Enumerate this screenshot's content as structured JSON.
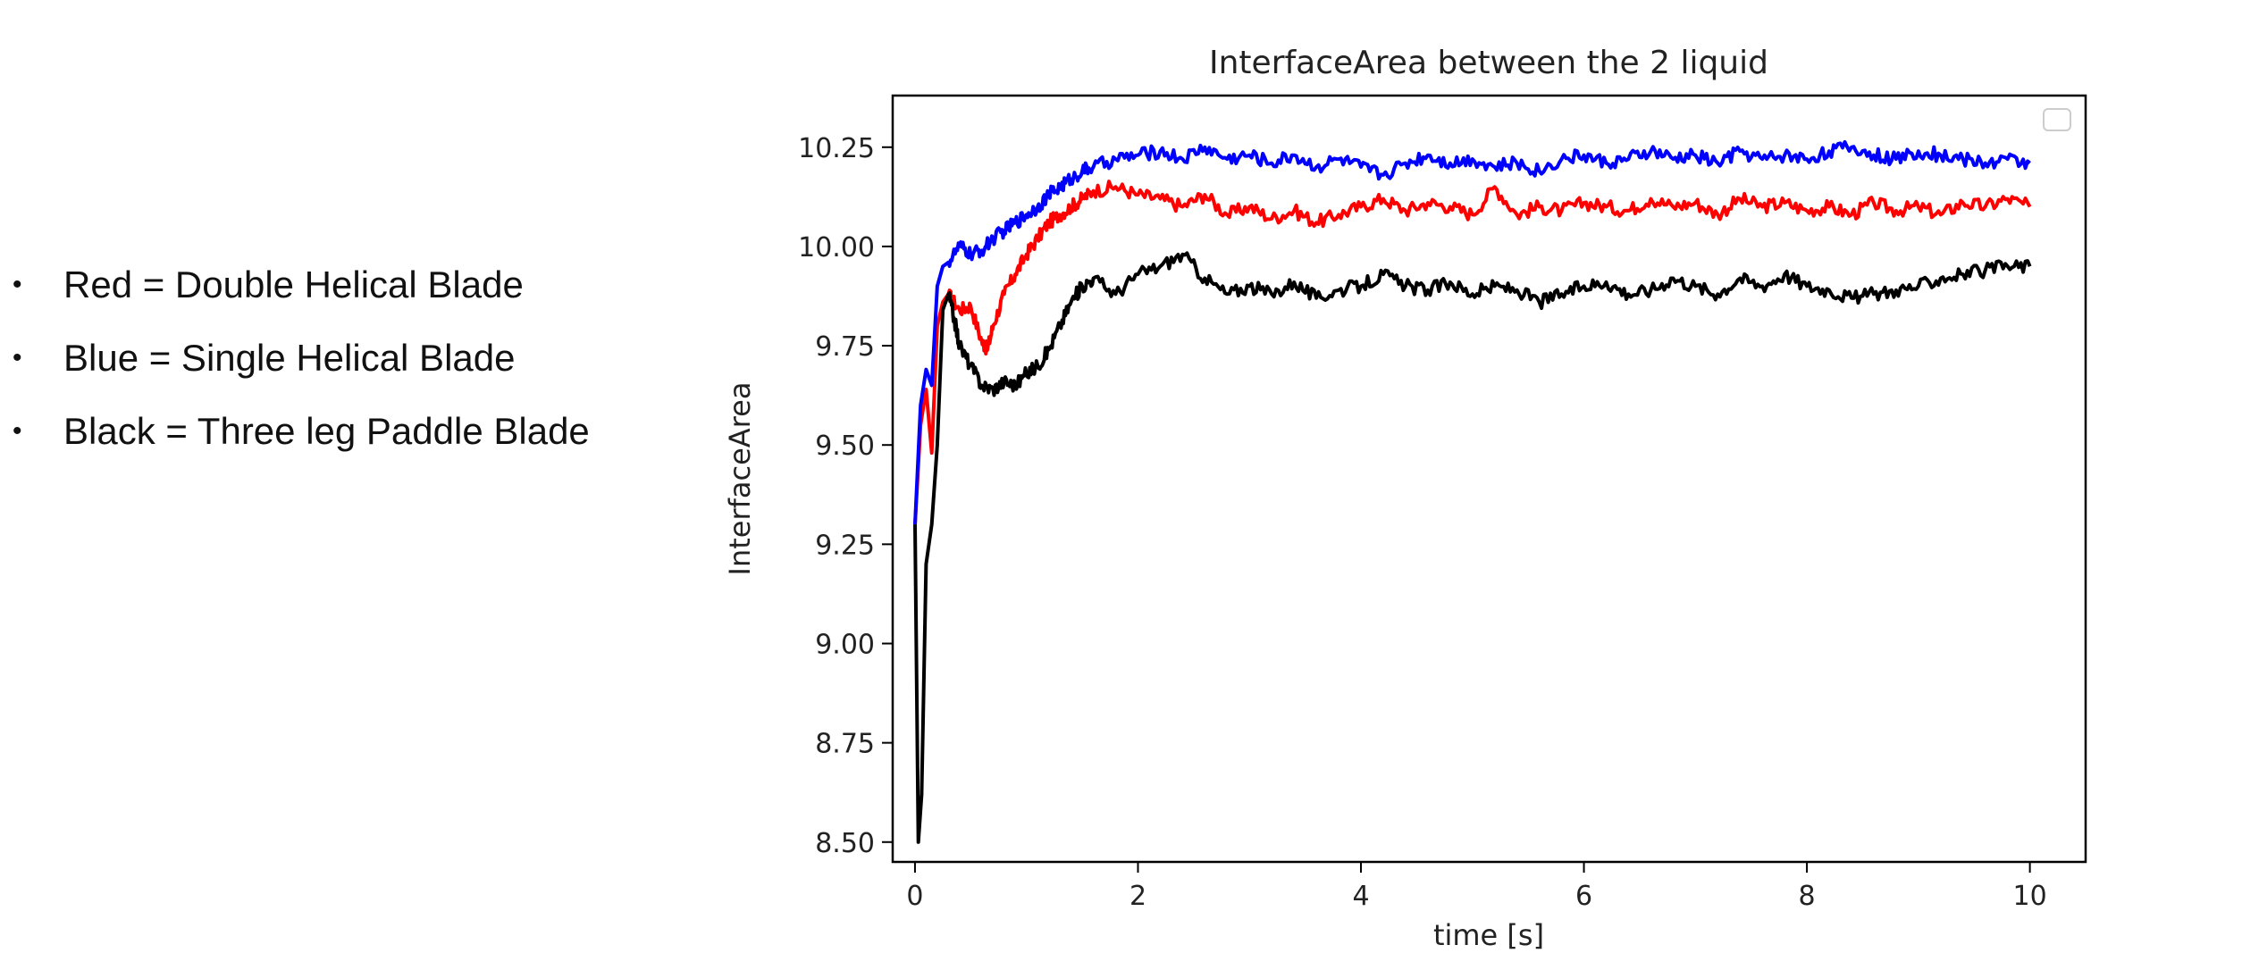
{
  "legend_notes": [
    {
      "bullet": "•",
      "text": "Red = Double Helical Blade"
    },
    {
      "bullet": "•",
      "text": "Blue = Single Helical Blade"
    },
    {
      "bullet": "•",
      "text": "Black = Three leg Paddle Blade"
    }
  ],
  "chart_data": {
    "type": "line",
    "title": "InterfaceArea between the 2 liquid",
    "xlabel": "time [s]",
    "ylabel": "InterfaceArea",
    "xlim": [
      -0.2,
      10.5
    ],
    "ylim": [
      8.45,
      10.38
    ],
    "xticks": [
      0,
      2,
      4,
      6,
      8,
      10
    ],
    "xtick_labels": [
      "0",
      "2",
      "4",
      "6",
      "8",
      "10"
    ],
    "yticks": [
      8.5,
      8.75,
      9.0,
      9.25,
      9.5,
      9.75,
      10.0,
      10.25
    ],
    "ytick_labels": [
      "8.50",
      "8.75",
      "9.00",
      "9.25",
      "9.50",
      "9.75",
      "10.00",
      "10.25"
    ],
    "grid": false,
    "legend": "top-right (empty box)",
    "series": [
      {
        "color": "#ff0000",
        "x": [
          0,
          0.05,
          0.1,
          0.15,
          0.2,
          0.25,
          0.3,
          0.4,
          0.5,
          0.6,
          0.65,
          0.7,
          0.8,
          0.9,
          1.0,
          1.1,
          1.2,
          1.3,
          1.4,
          1.5,
          1.6,
          1.8,
          2.0,
          2.2,
          2.4,
          2.6,
          2.8,
          3.0,
          3.2,
          3.4,
          3.6,
          3.8,
          4.0,
          4.2,
          4.4,
          4.6,
          4.8,
          5.0,
          5.2,
          5.4,
          5.6,
          5.8,
          6.0,
          6.2,
          6.4,
          6.6,
          6.8,
          7.0,
          7.2,
          7.4,
          7.6,
          7.8,
          8.0,
          8.2,
          8.4,
          8.6,
          8.8,
          9.0,
          9.2,
          9.4,
          9.6,
          9.8,
          10.0
        ],
        "y": [
          9.3,
          9.55,
          9.64,
          9.48,
          9.8,
          9.86,
          9.88,
          9.84,
          9.85,
          9.76,
          9.74,
          9.8,
          9.88,
          9.93,
          9.98,
          10.02,
          10.06,
          10.08,
          10.1,
          10.12,
          10.14,
          10.15,
          10.13,
          10.12,
          10.1,
          10.13,
          10.08,
          10.1,
          10.07,
          10.09,
          10.06,
          10.08,
          10.1,
          10.12,
          10.09,
          10.11,
          10.1,
          10.08,
          10.15,
          10.08,
          10.1,
          10.09,
          10.11,
          10.1,
          10.09,
          10.12,
          10.1,
          10.11,
          10.08,
          10.12,
          10.1,
          10.11,
          10.09,
          10.1,
          10.08,
          10.11,
          10.09,
          10.1,
          10.08,
          10.11,
          10.1,
          10.12,
          10.1
        ]
      },
      {
        "color": "#0000ff",
        "x": [
          0,
          0.05,
          0.1,
          0.15,
          0.2,
          0.25,
          0.3,
          0.4,
          0.5,
          0.6,
          0.7,
          0.8,
          0.9,
          1.0,
          1.1,
          1.2,
          1.3,
          1.4,
          1.5,
          1.6,
          1.8,
          2.0,
          2.2,
          2.4,
          2.6,
          2.8,
          3.0,
          3.2,
          3.4,
          3.6,
          3.8,
          4.0,
          4.2,
          4.4,
          4.6,
          4.8,
          5.0,
          5.2,
          5.4,
          5.6,
          5.8,
          6.0,
          6.2,
          6.4,
          6.6,
          6.8,
          7.0,
          7.2,
          7.4,
          7.6,
          7.8,
          8.0,
          8.2,
          8.4,
          8.6,
          8.8,
          9.0,
          9.2,
          9.4,
          9.6,
          9.8,
          10.0
        ],
        "y": [
          9.3,
          9.6,
          9.69,
          9.65,
          9.9,
          9.95,
          9.96,
          10.0,
          9.98,
          9.99,
          10.02,
          10.04,
          10.06,
          10.08,
          10.1,
          10.13,
          10.15,
          10.17,
          10.19,
          10.2,
          10.22,
          10.23,
          10.24,
          10.22,
          10.25,
          10.22,
          10.23,
          10.21,
          10.23,
          10.2,
          10.22,
          10.2,
          10.18,
          10.21,
          10.23,
          10.21,
          10.22,
          10.2,
          10.21,
          10.19,
          10.22,
          10.23,
          10.21,
          10.22,
          10.24,
          10.22,
          10.23,
          10.21,
          10.24,
          10.22,
          10.23,
          10.22,
          10.24,
          10.25,
          10.23,
          10.22,
          10.24,
          10.23,
          10.22,
          10.21,
          10.22,
          10.21
        ]
      },
      {
        "color": "#000000",
        "x": [
          0,
          0.03,
          0.06,
          0.1,
          0.15,
          0.2,
          0.25,
          0.3,
          0.35,
          0.4,
          0.5,
          0.6,
          0.7,
          0.8,
          0.9,
          1.0,
          1.1,
          1.2,
          1.3,
          1.4,
          1.5,
          1.6,
          1.8,
          2.0,
          2.2,
          2.4,
          2.6,
          2.8,
          3.0,
          3.2,
          3.4,
          3.6,
          3.8,
          4.0,
          4.2,
          4.4,
          4.6,
          4.8,
          5.0,
          5.2,
          5.4,
          5.6,
          5.8,
          6.0,
          6.2,
          6.4,
          6.6,
          6.8,
          7.0,
          7.2,
          7.4,
          7.6,
          7.8,
          8.0,
          8.2,
          8.4,
          8.6,
          8.8,
          9.0,
          9.2,
          9.4,
          9.6,
          9.8,
          10.0
        ],
        "y": [
          9.3,
          8.5,
          8.62,
          9.2,
          9.3,
          9.5,
          9.84,
          9.88,
          9.82,
          9.75,
          9.7,
          9.65,
          9.64,
          9.66,
          9.65,
          9.68,
          9.7,
          9.74,
          9.8,
          9.86,
          9.9,
          9.92,
          9.88,
          9.93,
          9.95,
          9.98,
          9.92,
          9.88,
          9.9,
          9.88,
          9.91,
          9.87,
          9.89,
          9.9,
          9.93,
          9.9,
          9.89,
          9.91,
          9.88,
          9.9,
          9.89,
          9.86,
          9.88,
          9.9,
          9.91,
          9.88,
          9.89,
          9.92,
          9.9,
          9.88,
          9.92,
          9.9,
          9.93,
          9.9,
          9.89,
          9.87,
          9.88,
          9.89,
          9.9,
          9.92,
          9.93,
          9.94,
          9.95,
          9.95
        ]
      }
    ]
  }
}
